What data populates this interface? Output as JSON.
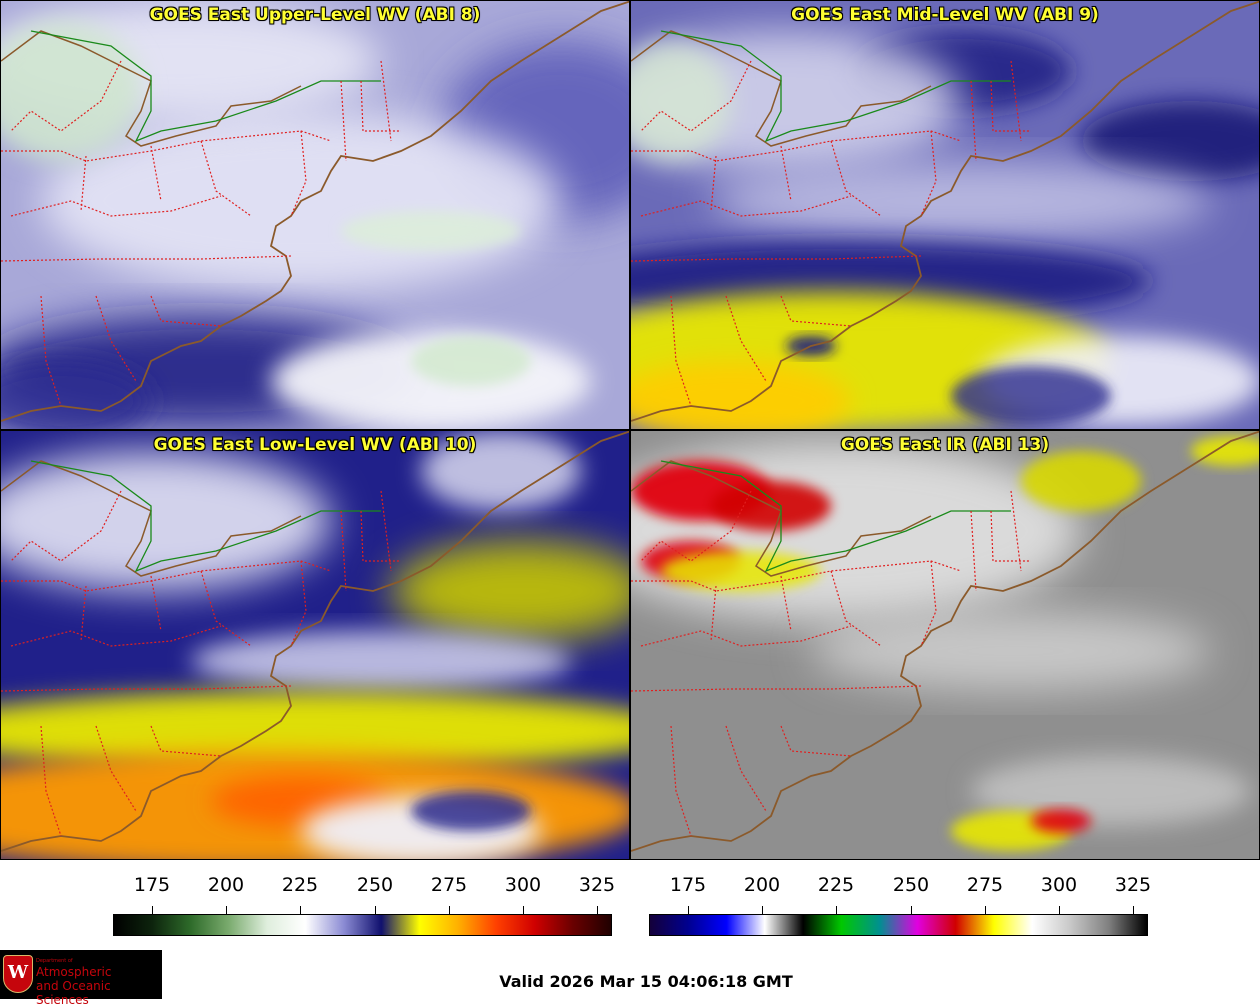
{
  "panels": [
    {
      "title": "GOES East Upper-Level WV (ABI 8)",
      "style": "wv_upper"
    },
    {
      "title": "GOES East Mid-Level WV (ABI 9)",
      "style": "wv_mid"
    },
    {
      "title": "GOES East Low-Level WV (ABI 10)",
      "style": "wv_low"
    },
    {
      "title": "GOES East IR (ABI 13)",
      "style": "ir"
    }
  ],
  "colorbars": [
    {
      "name": "water-vapor",
      "ticks": [
        "175",
        "200",
        "225",
        "250",
        "275",
        "300",
        "325"
      ],
      "stops": [
        "#000000",
        "#0d240d",
        "#2e6b2a",
        "#7aab6e",
        "#dfeedd",
        "#ffffff",
        "#8c8cd4",
        "#10106e",
        "#ffff00",
        "#ffb000",
        "#ff4000",
        "#d00000",
        "#6a0000",
        "#200000"
      ]
    },
    {
      "name": "infrared",
      "ticks": [
        "175",
        "200",
        "225",
        "250",
        "275",
        "300",
        "325"
      ],
      "stops": [
        "#14003a",
        "#000090",
        "#0000ff",
        "#ffffff",
        "#000000",
        "#00c800",
        "#009090",
        "#e000e0",
        "#d00000",
        "#ffff00",
        "#ffffff",
        "#c8c8c8",
        "#808080",
        "#000000"
      ]
    }
  ],
  "footer": {
    "valid_time": "Valid 2026 Mar 15 04:06:18 GMT",
    "logo_dept": "Department of",
    "logo_line1": "Atmospheric",
    "logo_line2": "and Oceanic Sciences",
    "logo_crest": "W"
  }
}
